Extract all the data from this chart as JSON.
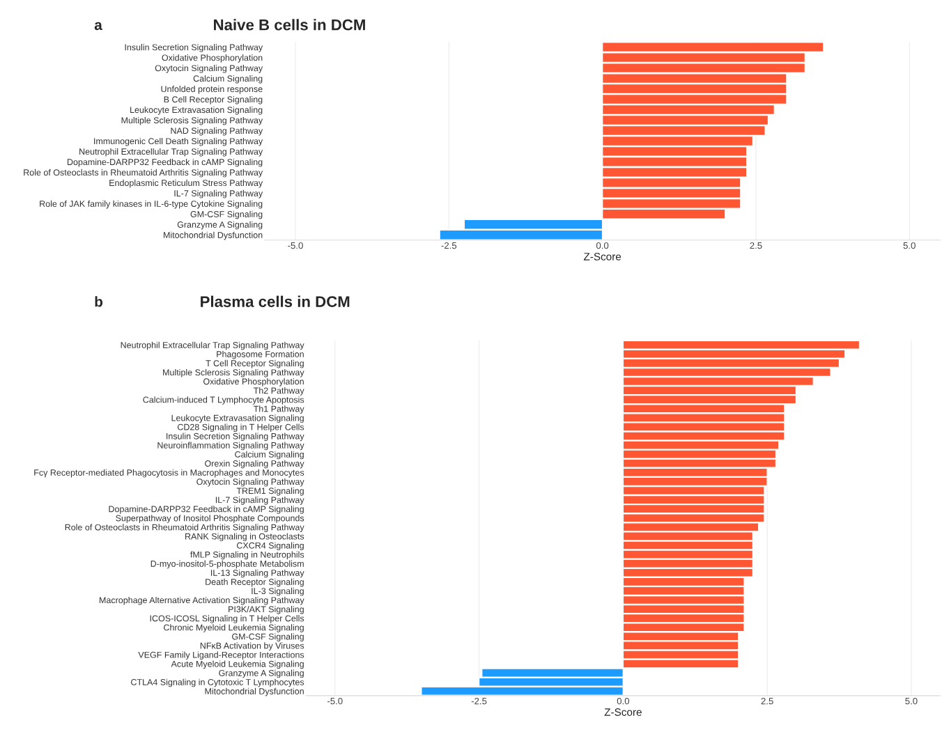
{
  "chart_data": [
    {
      "type": "bar",
      "orientation": "horizontal",
      "title": "Naive B cells in DCM",
      "annotations": [
        "a"
      ],
      "xlabel": "Z-Score",
      "categories": [
        "Insulin Secretion Signaling Pathway",
        "Oxidative Phosphorylation",
        "Oxytocin Signaling Pathway",
        "Calcium Signaling",
        "Unfolded protein response",
        "B Cell Receptor Signaling",
        "Leukocyte Extravasation Signaling",
        "Multiple Sclerosis Signaling Pathway",
        "NAD Signaling Pathway",
        "Immunogenic Cell Death Signaling Pathway",
        "Neutrophil Extracellular Trap Signaling Pathway",
        "Dopamine-DARPP32 Feedback in cAMP Signaling",
        "Role of Osteoclasts in Rheumatoid Arthritis Signaling Pathway",
        "Endoplasmic Reticulum Stress Pathway",
        "IL-7 Signaling Pathway",
        "Role of JAK family kinases in IL-6-type Cytokine Signaling",
        "GM-CSF Signaling",
        "Granzyme A Signaling",
        "Mitochondrial Dysfunction"
      ],
      "values": [
        3.6,
        3.3,
        3.3,
        3.0,
        3.0,
        3.0,
        2.8,
        2.7,
        2.65,
        2.45,
        2.35,
        2.35,
        2.35,
        2.25,
        2.25,
        2.25,
        2.0,
        -2.25,
        -2.65
      ],
      "colors": [
        "#ff5733",
        "#ff5733",
        "#ff5733",
        "#ff5733",
        "#ff5733",
        "#ff5733",
        "#ff5733",
        "#ff5733",
        "#ff5733",
        "#ff5733",
        "#ff5733",
        "#ff5733",
        "#ff5733",
        "#ff5733",
        "#ff5733",
        "#ff5733",
        "#ff5733",
        "#1e9bff",
        "#1e9bff"
      ],
      "xlim": [
        -5.5,
        5.5
      ],
      "xticks": [
        {
          "value": -5,
          "label": "-5.0"
        },
        {
          "value": -2.5,
          "label": "-2.5"
        },
        {
          "value": 0,
          "label": "0.0"
        },
        {
          "value": 2.5,
          "label": "2.5"
        },
        {
          "value": 5,
          "label": "5.0"
        }
      ],
      "grid": true
    },
    {
      "type": "bar",
      "orientation": "horizontal",
      "title": "Plasma cells in DCM",
      "annotations": [
        "b"
      ],
      "xlabel": "Z-Score",
      "categories": [
        "Neutrophil Extracellular Trap Signaling Pathway",
        "Phagosome Formation",
        "T Cell Receptor Signaling",
        "Multiple Sclerosis Signaling Pathway",
        "Oxidative Phosphorylation",
        "Th2 Pathway",
        "Calcium-induced T Lymphocyte Apoptosis",
        "Th1 Pathway",
        "Leukocyte Extravasation Signaling",
        "CD28 Signaling in T Helper Cells",
        "Insulin Secretion Signaling Pathway",
        "Neuroinflammation Signaling Pathway",
        "Calcium Signaling",
        "Orexin Signaling Pathway",
        "Fcγ Receptor-mediated Phagocytosis in Macrophages and Monocytes",
        "Oxytocin Signaling Pathway",
        "TREM1 Signaling",
        "IL-7 Signaling Pathway",
        "Dopamine-DARPP32 Feedback in cAMP Signaling",
        "Superpathway of Inositol Phosphate Compounds",
        "Role of Osteoclasts in Rheumatoid Arthritis Signaling Pathway",
        "RANK Signaling in Osteoclasts",
        "CXCR4 Signaling",
        "fMLP Signaling in Neutrophils",
        "D-myo-inositol-5-phosphate Metabolism",
        "IL-13 Signaling Pathway",
        "Death Receptor Signaling",
        "IL-3 Signaling",
        "Macrophage Alternative Activation Signaling Pathway",
        "PI3K/AKT Signaling",
        "ICOS-ICOSL Signaling in T Helper Cells",
        "Chronic Myeloid Leukemia Signaling",
        "GM-CSF Signaling",
        "NFκB Activation by Viruses",
        "VEGF Family Ligand-Receptor Interactions",
        "Acute Myeloid Leukemia Signaling",
        "Granzyme A Signaling",
        "CTLA4 Signaling in Cytotoxic T Lymphocytes",
        "Mitochondrial Dysfunction"
      ],
      "values": [
        4.1,
        3.85,
        3.75,
        3.6,
        3.3,
        3.0,
        3.0,
        2.8,
        2.8,
        2.8,
        2.8,
        2.7,
        2.65,
        2.65,
        2.5,
        2.5,
        2.45,
        2.45,
        2.45,
        2.45,
        2.35,
        2.25,
        2.25,
        2.25,
        2.25,
        2.25,
        2.1,
        2.1,
        2.1,
        2.1,
        2.1,
        2.1,
        2.0,
        2.0,
        2.0,
        2.0,
        -2.45,
        -2.5,
        -3.5
      ],
      "colors": [
        "#ff5733",
        "#ff5733",
        "#ff5733",
        "#ff5733",
        "#ff5733",
        "#ff5733",
        "#ff5733",
        "#ff5733",
        "#ff5733",
        "#ff5733",
        "#ff5733",
        "#ff5733",
        "#ff5733",
        "#ff5733",
        "#ff5733",
        "#ff5733",
        "#ff5733",
        "#ff5733",
        "#ff5733",
        "#ff5733",
        "#ff5733",
        "#ff5733",
        "#ff5733",
        "#ff5733",
        "#ff5733",
        "#ff5733",
        "#ff5733",
        "#ff5733",
        "#ff5733",
        "#ff5733",
        "#ff5733",
        "#ff5733",
        "#ff5733",
        "#ff5733",
        "#ff5733",
        "#ff5733",
        "#1e9bff",
        "#1e9bff",
        "#1e9bff"
      ],
      "xlim": [
        -5.5,
        5.5
      ],
      "xticks": [
        {
          "value": -5,
          "label": "-5.0"
        },
        {
          "value": -2.5,
          "label": "-2.5"
        },
        {
          "value": 0,
          "label": "0.0"
        },
        {
          "value": 2.5,
          "label": "2.5"
        },
        {
          "value": 5,
          "label": "5.0"
        }
      ],
      "grid": true
    }
  ]
}
